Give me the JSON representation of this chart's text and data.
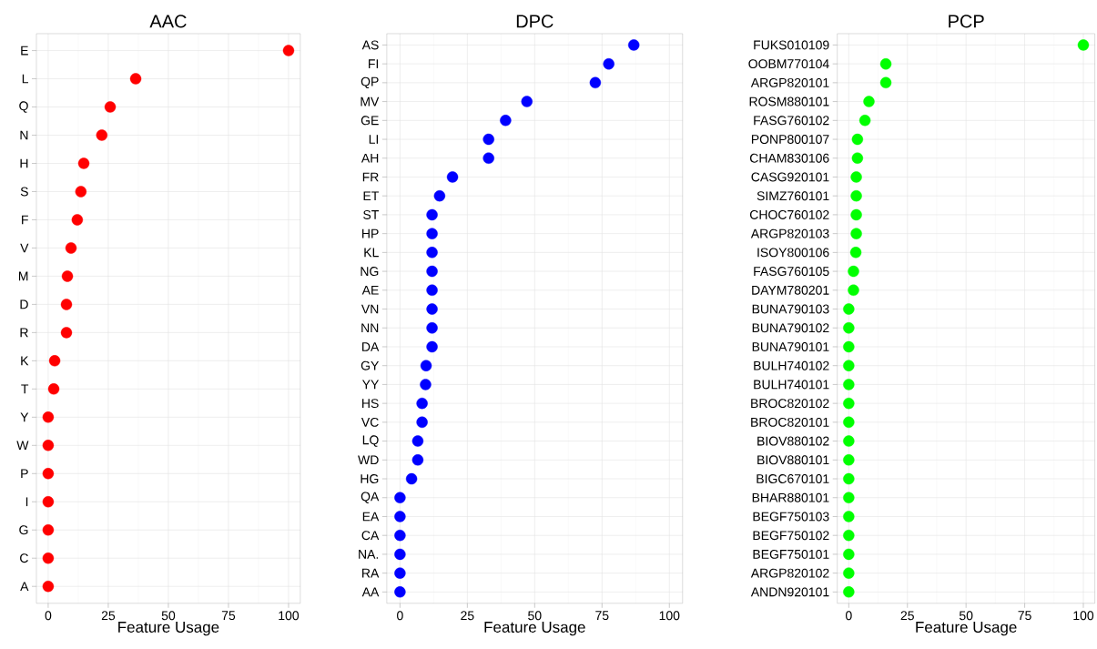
{
  "chart_data": [
    {
      "type": "scatter",
      "title": "AAC",
      "xlabel": "Feature Usage",
      "orientation": "horizontal",
      "grid": true,
      "marker": "circle",
      "color": "#ff0000",
      "categories": [
        "E",
        "L",
        "Q",
        "N",
        "H",
        "S",
        "F",
        "V",
        "M",
        "D",
        "R",
        "K",
        "T",
        "Y",
        "W",
        "P",
        "I",
        "G",
        "C",
        "A"
      ],
      "values": [
        100,
        36.4,
        25.8,
        22.3,
        14.8,
        13.6,
        12.1,
        9.5,
        8.0,
        7.6,
        7.6,
        2.7,
        2.3,
        0,
        0,
        0,
        0,
        0,
        0,
        0
      ],
      "xlim": [
        -4.9,
        104.9
      ],
      "xticks": [
        0,
        25,
        50,
        75,
        100
      ]
    },
    {
      "type": "scatter",
      "title": "DPC",
      "xlabel": "Feature Usage",
      "orientation": "horizontal",
      "grid": true,
      "marker": "circle",
      "color": "#0000ff",
      "categories": [
        "AS",
        "FI",
        "QP",
        "MV",
        "GE",
        "LI",
        "AH",
        "FR",
        "ET",
        "ST",
        "HP",
        "KL",
        "NG",
        "AE",
        "VN",
        "NN",
        "DA",
        "GY",
        "YY",
        "HS",
        "VC",
        "LQ",
        "WD",
        "HG",
        "QA",
        "EA",
        "CA",
        "NA.",
        "RA",
        "AA"
      ],
      "values": [
        86.8,
        77.5,
        72.5,
        47.1,
        39.2,
        32.9,
        32.9,
        19.5,
        14.7,
        11.9,
        11.9,
        11.9,
        11.9,
        11.9,
        11.9,
        11.9,
        11.9,
        9.7,
        9.5,
        8.2,
        8.2,
        6.6,
        6.6,
        4.3,
        0,
        0,
        0,
        0,
        0,
        0
      ],
      "xlim": [
        -4.9,
        104.9
      ],
      "xticks": [
        0,
        25,
        50,
        75,
        100
      ]
    },
    {
      "type": "scatter",
      "title": "PCP",
      "xlabel": "Feature Usage",
      "orientation": "horizontal",
      "grid": true,
      "marker": "circle",
      "color": "#00ff00",
      "categories": [
        "FUKS010109",
        "OOBM770104",
        "ARGP820101",
        "ROSM880101",
        "FASG760102",
        "PONP800107",
        "CHAM830106",
        "CASG920101",
        "SIMZ760101",
        "CHOC760102",
        "ARGP820103",
        "ISOY800106",
        "FASG760105",
        "DAYM780201",
        "BUNA790103",
        "BUNA790102",
        "BUNA790101",
        "BULH740102",
        "BULH740101",
        "BROC820102",
        "BROC820101",
        "BIOV880102",
        "BIOV880101",
        "BIGC670101",
        "BHAR880101",
        "BEGF750103",
        "BEGF750102",
        "BEGF750101",
        "ARGP820102",
        "ANDN920101"
      ],
      "values": [
        100,
        15.8,
        15.8,
        8.6,
        6.9,
        3.7,
        3.7,
        3.2,
        3.2,
        3.2,
        3.2,
        3.0,
        2.0,
        2.0,
        0,
        0,
        0,
        0,
        0,
        0,
        0,
        0,
        0,
        0,
        0,
        0,
        0,
        0,
        0,
        0
      ],
      "xlim": [
        -4.9,
        104.9
      ],
      "xticks": [
        0,
        25,
        50,
        75,
        100
      ]
    }
  ]
}
